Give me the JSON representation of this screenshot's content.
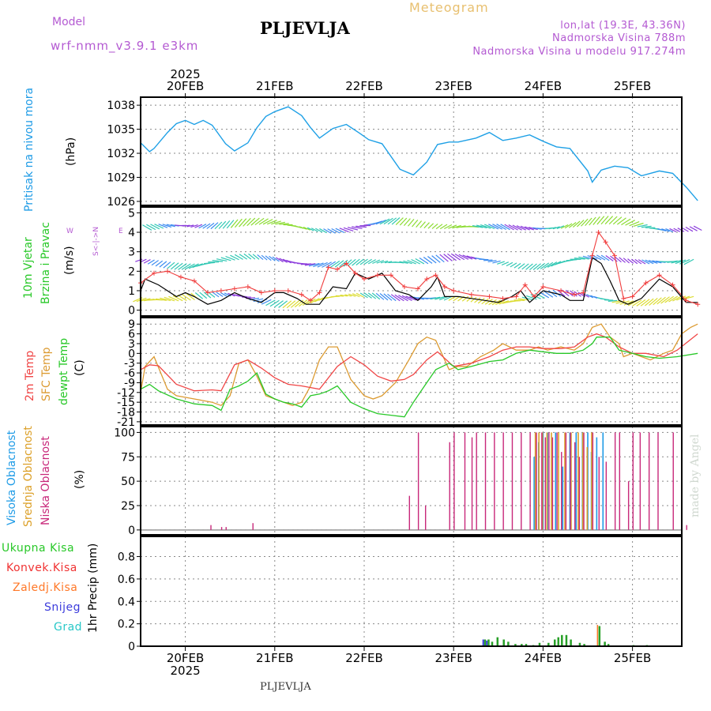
{
  "header": {
    "model_label": "Model",
    "model_name": "wrf-nmm_v3.9.1 e3km",
    "title": "PLJEVLJA",
    "meteogram": "Meteogram",
    "lonlat": "lon,lat (19.3E, 43.36N)",
    "elevation": "Nadmorska Visina 788m",
    "model_elevation": "Nadmorska Visina u modelu 917.274m"
  },
  "footer": {
    "place": "PLJEVLJA",
    "made_by": "made by Angel"
  },
  "colors": {
    "pressure": "#1ea0e6",
    "wind_speed": "#000000",
    "gust": "#f03c3c",
    "temp2m": "#f04646",
    "sfc": "#dc9b32",
    "dew": "#28c828",
    "low_cloud": "#c8287a",
    "mid_cloud": "#dca028",
    "high_cloud": "#1e9be6",
    "total_precip": "#28a028",
    "conv_precip": "#f03232",
    "frozen_precip": "#ff7828",
    "snow": "#3c3cdc",
    "hail": "#28c8c8",
    "title_purple": "#b45ad2"
  },
  "time_axis": {
    "year": "2025",
    "days": [
      "20FEB",
      "21FEB",
      "22FEB",
      "23FEB",
      "24FEB",
      "25FEB"
    ],
    "start_day_offset": -0.5,
    "end_day_offset": 5.73
  },
  "panels": {
    "pressure": {
      "label": "Pritisak na nivou mora",
      "unit": "(hPa)",
      "ticks": [
        1026,
        1029,
        1032,
        1035,
        1038
      ],
      "ylim": [
        1025.5,
        1039
      ]
    },
    "wind": {
      "label1": "10m Vjetar",
      "label2": "Brzina i Pravac",
      "unit": "(m/s)",
      "compass_n": "N",
      "compass_s": "S",
      "compass_e": "E",
      "compass_w": "W",
      "ticks": [
        0,
        1,
        2,
        3,
        4,
        5
      ],
      "ylim": [
        -0.3,
        5.3
      ]
    },
    "temp": {
      "label_2m": "2m Temp",
      "label_sfc": "SFC Temp",
      "label_dew": "dewpt Temp",
      "unit": "(C)",
      "ticks": [
        9,
        6,
        3,
        0,
        -3,
        -6,
        -9,
        -12,
        -15,
        -18,
        -21
      ],
      "ylim": [
        -22,
        11
      ]
    },
    "cloud": {
      "label_high": "Visoka Oblacnost",
      "label_mid": "Srednja Oblacnost",
      "label_low": "Niska Oblacnost",
      "unit": "(%)",
      "ticks": [
        0,
        25,
        50,
        75,
        100
      ],
      "ylim": [
        -5,
        106
      ]
    },
    "precip": {
      "legend": [
        "Ukupna Kisa",
        "Konvek.Kisa",
        "Zaledj.Kisa",
        "Snijeg",
        "Grad"
      ],
      "unit": "1hr Precip (mm)",
      "ticks": [
        0,
        0.2,
        0.4,
        0.6,
        0.8
      ],
      "ylim": [
        0,
        0.98
      ]
    }
  },
  "chart_data": {
    "type": "line",
    "title": "Meteogram PLJEVLJA",
    "x_unit": "days since 20FEB 00UTC",
    "pressure_hpa": {
      "x": [
        -0.5,
        -0.4,
        -0.35,
        -0.2,
        -0.1,
        0,
        0.1,
        0.2,
        0.3,
        0.45,
        0.55,
        0.7,
        0.8,
        0.9,
        1.0,
        1.15,
        1.3,
        1.4,
        1.5,
        1.65,
        1.8,
        1.95,
        2.05,
        2.2,
        2.4,
        2.55,
        2.7,
        2.82,
        2.95,
        3.05,
        3.25,
        3.4,
        3.55,
        3.7,
        3.85,
        4.0,
        4.15,
        4.3,
        4.5,
        4.55,
        4.65,
        4.8,
        4.95,
        5.1,
        5.3,
        5.45,
        5.6,
        5.73
      ],
      "y": [
        1033.3,
        1032.2,
        1032.6,
        1034.6,
        1035.7,
        1036.1,
        1035.6,
        1036.1,
        1035.5,
        1033.2,
        1032.3,
        1033.3,
        1035.2,
        1036.6,
        1037.2,
        1037.8,
        1036.7,
        1035.2,
        1033.9,
        1035.1,
        1035.6,
        1034.5,
        1033.7,
        1033.2,
        1030.0,
        1029.3,
        1030.9,
        1033.1,
        1033.4,
        1033.4,
        1033.9,
        1034.6,
        1033.6,
        1033.9,
        1034.3,
        1033.5,
        1032.8,
        1032.6,
        1029.8,
        1028.4,
        1029.9,
        1030.4,
        1030.2,
        1029.2,
        1029.8,
        1029.5,
        1027.8,
        1026.1
      ]
    },
    "wind_speed_ms": {
      "x": [
        -0.5,
        -0.45,
        -0.3,
        -0.1,
        0,
        0.1,
        0.25,
        0.4,
        0.55,
        0.7,
        0.85,
        1.0,
        1.1,
        1.25,
        1.35,
        1.5,
        1.65,
        1.8,
        1.9,
        2.05,
        2.2,
        2.35,
        2.5,
        2.6,
        2.75,
        2.82,
        2.9,
        3.05,
        3.2,
        3.35,
        3.5,
        3.65,
        3.75,
        3.85,
        4.0,
        4.2,
        4.3,
        4.45,
        4.55,
        4.65,
        4.75,
        4.85,
        4.95,
        5.1,
        5.3,
        5.45,
        5.6,
        5.73
      ],
      "y": [
        1.0,
        1.6,
        1.3,
        0.7,
        0.9,
        0.7,
        0.3,
        0.5,
        0.9,
        0.6,
        0.4,
        0.9,
        0.9,
        0.6,
        0.3,
        0.3,
        1.2,
        1.1,
        1.9,
        1.6,
        1.9,
        1.0,
        0.8,
        0.5,
        1.2,
        1.7,
        0.7,
        0.7,
        0.6,
        0.5,
        0.4,
        0.7,
        1.0,
        0.4,
        1.0,
        0.8,
        0.5,
        0.5,
        2.7,
        2.4,
        1.5,
        0.5,
        0.3,
        0.6,
        1.6,
        1.2,
        0.4,
        0.4
      ]
    },
    "wind_gust_ms": {
      "x": [
        -0.5,
        -0.35,
        -0.2,
        -0.05,
        0.1,
        0.25,
        0.4,
        0.55,
        0.7,
        0.85,
        1.0,
        1.15,
        1.3,
        1.4,
        1.5,
        1.6,
        1.7,
        1.8,
        1.9,
        2.0,
        2.15,
        2.3,
        2.45,
        2.6,
        2.7,
        2.8,
        2.9,
        3.0,
        3.2,
        3.4,
        3.55,
        3.7,
        3.8,
        3.9,
        4.0,
        4.2,
        4.35,
        4.45,
        4.55,
        4.62,
        4.7,
        4.8,
        4.9,
        5.0,
        5.15,
        5.3,
        5.45,
        5.6,
        5.73
      ],
      "y": [
        1.4,
        1.9,
        2.0,
        1.7,
        1.5,
        0.9,
        1.0,
        1.1,
        1.2,
        0.9,
        1.0,
        1.0,
        0.8,
        0.5,
        0.9,
        2.2,
        2.1,
        2.4,
        1.9,
        1.6,
        1.8,
        1.8,
        1.2,
        1.1,
        1.6,
        1.8,
        1.2,
        1.0,
        0.8,
        0.7,
        0.6,
        0.7,
        1.3,
        0.7,
        1.2,
        1.0,
        0.8,
        0.9,
        2.8,
        4.0,
        3.5,
        2.8,
        0.6,
        0.7,
        1.4,
        1.8,
        1.3,
        0.5,
        0.3
      ]
    },
    "temp_2m_c": {
      "x": [
        -0.5,
        -0.4,
        -0.3,
        -0.1,
        0.1,
        0.3,
        0.4,
        0.55,
        0.7,
        0.85,
        1.0,
        1.15,
        1.3,
        1.5,
        1.7,
        1.85,
        2.0,
        2.15,
        2.3,
        2.45,
        2.55,
        2.7,
        2.82,
        3.0,
        3.2,
        3.4,
        3.55,
        3.7,
        3.85,
        4.0,
        4.2,
        4.35,
        4.5,
        4.6,
        4.7,
        4.85,
        5.0,
        5.15,
        5.35,
        5.5,
        5.73
      ],
      "y": [
        -5,
        -3.5,
        -3.8,
        -9.5,
        -11.5,
        -11.2,
        -11.5,
        -3.5,
        -2,
        -4.5,
        -7.5,
        -9.5,
        -10,
        -11,
        -4,
        -1,
        -3.5,
        -7,
        -8.5,
        -8,
        -6.5,
        -2,
        0.5,
        -4,
        -3,
        -1,
        1,
        2,
        2,
        1.5,
        1.5,
        2,
        5,
        6,
        5,
        2,
        0,
        0,
        -1,
        1,
        6
      ]
    },
    "temp_sfc_c": {
      "x": [
        -0.5,
        -0.45,
        -0.35,
        -0.2,
        -0.1,
        0.1,
        0.3,
        0.4,
        0.5,
        0.6,
        0.7,
        0.8,
        0.9,
        1.0,
        1.1,
        1.2,
        1.3,
        1.4,
        1.5,
        1.6,
        1.7,
        1.85,
        2.0,
        2.1,
        2.2,
        2.35,
        2.5,
        2.6,
        2.7,
        2.8,
        2.95,
        3.05,
        3.15,
        3.3,
        3.45,
        3.55,
        3.7,
        3.85,
        3.95,
        4.05,
        4.2,
        4.35,
        4.45,
        4.55,
        4.65,
        4.75,
        4.85,
        4.9,
        5.0,
        5.1,
        5.2,
        5.35,
        5.45,
        5.55,
        5.65,
        5.73
      ],
      "y": [
        -12,
        -4,
        -1,
        -11,
        -13,
        -14,
        -15,
        -16,
        -13,
        -3,
        -2,
        -7,
        -13,
        -14,
        -15,
        -16,
        -15,
        -10,
        -2,
        2,
        2,
        -8,
        -13,
        -14,
        -13,
        -9,
        -2,
        3,
        5,
        4,
        -5,
        -4,
        -4,
        -1,
        1,
        3,
        1,
        1,
        2,
        1,
        2,
        1,
        3,
        8,
        9,
        5,
        3,
        -1,
        0,
        -1,
        -2,
        0,
        1,
        6,
        8,
        9
      ]
    },
    "dewpoint_c": {
      "x": [
        -0.5,
        -0.4,
        -0.3,
        -0.1,
        0.1,
        0.3,
        0.4,
        0.5,
        0.6,
        0.7,
        0.8,
        0.9,
        1.0,
        1.1,
        1.2,
        1.3,
        1.4,
        1.5,
        1.6,
        1.7,
        1.85,
        2.0,
        2.15,
        2.3,
        2.45,
        2.55,
        2.7,
        2.8,
        2.95,
        3.05,
        3.2,
        3.4,
        3.55,
        3.7,
        3.85,
        4.0,
        4.15,
        4.3,
        4.45,
        4.55,
        4.6,
        4.75,
        4.85,
        5.0,
        5.15,
        5.3,
        5.5,
        5.73
      ],
      "y": [
        -11,
        -9.5,
        -11.5,
        -14,
        -15.5,
        -16,
        -17.5,
        -11,
        -10,
        -8.5,
        -6,
        -12.5,
        -14,
        -15,
        -15.5,
        -16.5,
        -13,
        -12.5,
        -11.5,
        -10,
        -15,
        -17,
        -18.5,
        -19,
        -19.5,
        -15,
        -9,
        -5,
        -3,
        -5,
        -4,
        -2.5,
        -2,
        0,
        1,
        0.5,
        0,
        0,
        1,
        3,
        5,
        5,
        1,
        0,
        -1,
        -1.5,
        -1,
        0
      ]
    },
    "cloud_low_pct": {
      "x": [
        0.28,
        0.4,
        0.45,
        0.75,
        2.5,
        2.6,
        2.68,
        2.95,
        3.0,
        3.12,
        3.2,
        3.25,
        3.35,
        3.45,
        3.55,
        3.65,
        3.75,
        3.85,
        3.92,
        3.98,
        4.02,
        4.06,
        4.1,
        4.15,
        4.2,
        4.25,
        4.3,
        4.35,
        4.4,
        4.45,
        4.55,
        4.62,
        4.7,
        4.8,
        4.85,
        4.95,
        5.0,
        5.08,
        5.18,
        5.28,
        5.45,
        5.6
      ],
      "values": [
        5,
        3,
        3,
        7,
        35,
        100,
        25,
        90,
        100,
        100,
        95,
        100,
        100,
        100,
        100,
        100,
        100,
        100,
        100,
        100,
        95,
        100,
        95,
        100,
        80,
        100,
        100,
        90,
        75,
        100,
        100,
        75,
        70,
        100,
        100,
        50,
        100,
        100,
        100,
        100,
        100,
        5
      ]
    },
    "cloud_mid_pct": {
      "x": [
        3.92,
        3.96,
        4.0,
        4.05,
        4.1,
        4.18,
        4.25,
        4.32,
        4.4,
        4.45,
        4.5,
        4.55
      ],
      "values": [
        100,
        100,
        100,
        100,
        100,
        100,
        100,
        100,
        100,
        100,
        85,
        100
      ]
    },
    "cloud_high_pct": {
      "x": [
        3.88,
        3.93,
        3.98,
        4.03,
        4.12,
        4.2,
        4.28,
        4.35,
        4.42,
        4.48,
        4.52,
        4.58,
        4.65
      ],
      "values": [
        75,
        90,
        100,
        100,
        100,
        65,
        100,
        100,
        100,
        100,
        80,
        95,
        100
      ]
    },
    "precip_total_mm": {
      "x": [
        3.34,
        3.38,
        3.42,
        3.48,
        3.55,
        3.6,
        3.68,
        3.75,
        3.8,
        3.88,
        3.95,
        4.05,
        4.12,
        4.16,
        4.2,
        4.25,
        4.3,
        4.4,
        4.45,
        4.62,
        4.68,
        4.72,
        5.0,
        5.15
      ],
      "values": [
        0.06,
        0.06,
        0.04,
        0.08,
        0.06,
        0.04,
        0.02,
        0.02,
        0.02,
        0.01,
        0.03,
        0.03,
        0.06,
        0.08,
        0.1,
        0.1,
        0.06,
        0.03,
        0.02,
        0.18,
        0.04,
        0.02,
        0.01,
        0.01
      ]
    },
    "precip_snow_mm": {
      "x": [
        3.34,
        3.38
      ],
      "values": [
        0.06,
        0.05
      ]
    },
    "precip_frozen_mm": {
      "x": [
        4.62
      ],
      "values": [
        0.19
      ]
    }
  }
}
